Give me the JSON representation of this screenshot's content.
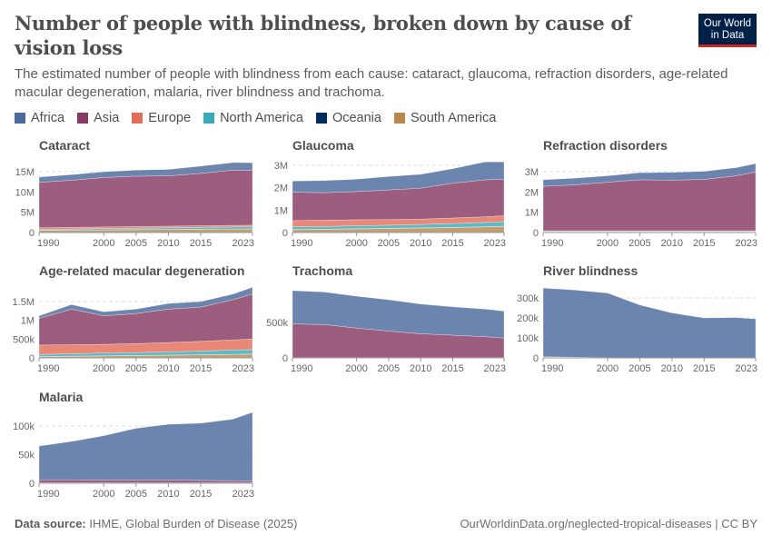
{
  "header": {
    "title": "Number of people with blindness, broken down by cause of vision loss",
    "subtitle": "The estimated number of people with blindness from each cause: cataract, glaucoma, refraction disorders, age-related macular degeneration, malaria, river blindness and trachoma.",
    "logo_text": "Our World in Data"
  },
  "legend": [
    {
      "name": "Africa",
      "color": "#4c6a9c"
    },
    {
      "name": "Asia",
      "color": "#883963"
    },
    {
      "name": "Europe",
      "color": "#e56e5a"
    },
    {
      "name": "North America",
      "color": "#38aaba"
    },
    {
      "name": "Oceania",
      "color": "#002b5c"
    },
    {
      "name": "South America",
      "color": "#b8894f"
    }
  ],
  "footer": {
    "source_label": "Data source:",
    "source": "IHME, Global Burden of Disease (2025)",
    "url": "OurWorldinData.org/neglected-tropical-diseases | CC BY"
  },
  "chart_data": [
    {
      "type": "area",
      "stacked": true,
      "title": "Cataract",
      "unit": "millions",
      "x": [
        1990,
        1995,
        2000,
        2005,
        2010,
        2015,
        2020,
        2023
      ],
      "xticks": [
        "1990",
        "2000",
        "2005",
        "2010",
        "2015",
        "2023"
      ],
      "yticks": [
        0,
        5,
        10,
        15
      ],
      "ytick_labels": [
        "0",
        "5M",
        "10M",
        "15M"
      ],
      "grid": "horizontal dashed",
      "series": [
        {
          "name": "Africa",
          "values": [
            1.3,
            1.4,
            1.4,
            1.5,
            1.6,
            1.8,
            1.9,
            1.9
          ]
        },
        {
          "name": "Asia",
          "values": [
            11.2,
            11.6,
            12.2,
            12.4,
            12.4,
            12.9,
            13.6,
            13.5
          ]
        },
        {
          "name": "Europe",
          "values": [
            0.4,
            0.4,
            0.4,
            0.4,
            0.4,
            0.4,
            0.4,
            0.4
          ]
        },
        {
          "name": "North America",
          "values": [
            0.2,
            0.25,
            0.3,
            0.35,
            0.4,
            0.45,
            0.5,
            0.5
          ]
        },
        {
          "name": "Oceania",
          "values": [
            0.02,
            0.02,
            0.02,
            0.02,
            0.02,
            0.02,
            0.02,
            0.02
          ]
        },
        {
          "name": "South America",
          "values": [
            0.55,
            0.6,
            0.65,
            0.7,
            0.75,
            0.8,
            0.85,
            0.9
          ]
        }
      ]
    },
    {
      "type": "area",
      "stacked": true,
      "title": "Glaucoma",
      "unit": "millions",
      "x": [
        1990,
        1995,
        2000,
        2005,
        2010,
        2015,
        2020,
        2023
      ],
      "xticks": [
        "1990",
        "2000",
        "2005",
        "2010",
        "2015",
        "2023"
      ],
      "yticks": [
        0,
        1,
        2,
        3
      ],
      "ytick_labels": [
        "0",
        "1M",
        "2M",
        "3M"
      ],
      "grid": "horizontal dashed",
      "series": [
        {
          "name": "Africa",
          "values": [
            0.5,
            0.54,
            0.55,
            0.6,
            0.62,
            0.65,
            0.8,
            0.77
          ]
        },
        {
          "name": "Asia",
          "values": [
            1.27,
            1.23,
            1.26,
            1.32,
            1.38,
            1.55,
            1.65,
            1.63
          ]
        },
        {
          "name": "Europe",
          "values": [
            0.28,
            0.28,
            0.27,
            0.25,
            0.24,
            0.25,
            0.25,
            0.27
          ]
        },
        {
          "name": "North America",
          "values": [
            0.12,
            0.12,
            0.13,
            0.14,
            0.15,
            0.17,
            0.19,
            0.2
          ]
        },
        {
          "name": "Oceania",
          "values": [
            0.01,
            0.01,
            0.01,
            0.01,
            0.01,
            0.01,
            0.01,
            0.01
          ]
        },
        {
          "name": "South America",
          "values": [
            0.12,
            0.14,
            0.16,
            0.18,
            0.2,
            0.22,
            0.25,
            0.27
          ]
        }
      ]
    },
    {
      "type": "area",
      "stacked": true,
      "title": "Refraction disorders",
      "unit": "millions",
      "x": [
        1990,
        1995,
        2000,
        2005,
        2010,
        2015,
        2020,
        2023
      ],
      "xticks": [
        "1990",
        "2000",
        "2005",
        "2010",
        "2015",
        "2023"
      ],
      "yticks": [
        0,
        1,
        2,
        3
      ],
      "ytick_labels": [
        "0",
        "1M",
        "2M",
        "3M"
      ],
      "grid": "horizontal dashed",
      "series": [
        {
          "name": "Africa",
          "values": [
            0.32,
            0.33,
            0.32,
            0.35,
            0.39,
            0.4,
            0.4,
            0.42
          ]
        },
        {
          "name": "Asia",
          "values": [
            2.195,
            2.265,
            2.395,
            2.515,
            2.495,
            2.535,
            2.715,
            2.895
          ]
        },
        {
          "name": "Europe",
          "values": [
            0.03,
            0.03,
            0.03,
            0.03,
            0.03,
            0.03,
            0.03,
            0.03
          ]
        },
        {
          "name": "North America",
          "values": [
            0.02,
            0.02,
            0.02,
            0.02,
            0.02,
            0.02,
            0.02,
            0.02
          ]
        },
        {
          "name": "Oceania",
          "values": [
            0.005,
            0.005,
            0.005,
            0.005,
            0.005,
            0.005,
            0.005,
            0.005
          ]
        },
        {
          "name": "South America",
          "values": [
            0.03,
            0.03,
            0.03,
            0.03,
            0.03,
            0.03,
            0.03,
            0.03
          ]
        }
      ]
    },
    {
      "type": "area",
      "stacked": true,
      "title": "Age-related macular degeneration",
      "unit": "millions",
      "x": [
        1990,
        1995,
        2000,
        2005,
        2010,
        2015,
        2020,
        2023
      ],
      "xticks": [
        "1990",
        "2000",
        "2005",
        "2010",
        "2015",
        "2023"
      ],
      "yticks": [
        0,
        0.5,
        1,
        1.5
      ],
      "ytick_labels": [
        "0",
        "500k",
        "1M",
        "1.5M"
      ],
      "grid": "horizontal dashed",
      "series": [
        {
          "name": "Africa",
          "values": [
            0.07,
            0.12,
            0.11,
            0.12,
            0.15,
            0.15,
            0.15,
            0.18
          ]
        },
        {
          "name": "Asia",
          "values": [
            0.71,
            0.95,
            0.76,
            0.8,
            0.89,
            0.91,
            1.07,
            1.2
          ]
        },
        {
          "name": "Europe",
          "values": [
            0.25,
            0.24,
            0.23,
            0.24,
            0.25,
            0.26,
            0.27,
            0.28
          ]
        },
        {
          "name": "North America",
          "values": [
            0.055,
            0.065,
            0.075,
            0.075,
            0.085,
            0.095,
            0.115,
            0.115
          ]
        },
        {
          "name": "Oceania",
          "values": [
            0.005,
            0.005,
            0.005,
            0.005,
            0.005,
            0.005,
            0.005,
            0.005
          ]
        },
        {
          "name": "South America",
          "values": [
            0.03,
            0.04,
            0.05,
            0.06,
            0.07,
            0.08,
            0.09,
            0.1
          ]
        }
      ]
    },
    {
      "type": "area",
      "stacked": true,
      "title": "Trachoma",
      "unit": "thousands",
      "x": [
        1990,
        1995,
        2000,
        2005,
        2010,
        2015,
        2020,
        2023
      ],
      "xticks": [
        "1990",
        "2000",
        "2005",
        "2010",
        "2015",
        "2023"
      ],
      "yticks": [
        0,
        500
      ],
      "ytick_labels": [
        "0",
        "500k"
      ],
      "grid": "horizontal dashed",
      "series": [
        {
          "name": "Africa",
          "values": [
            470,
            460,
            450,
            440,
            420,
            400,
            390,
            380
          ]
        },
        {
          "name": "Asia",
          "values": [
            475,
            465,
            415,
            375,
            335,
            315,
            295,
            275
          ]
        },
        {
          "name": "Europe",
          "values": [
            0,
            0,
            0,
            0,
            0,
            0,
            0,
            0
          ]
        },
        {
          "name": "North America",
          "values": [
            0,
            0,
            0,
            0,
            0,
            0,
            0,
            0
          ]
        },
        {
          "name": "Oceania",
          "values": [
            2,
            2,
            2,
            2,
            2,
            2,
            2,
            2
          ]
        },
        {
          "name": "South America",
          "values": [
            3,
            3,
            3,
            3,
            3,
            3,
            3,
            3
          ]
        }
      ]
    },
    {
      "type": "area",
      "stacked": true,
      "title": "River blindness",
      "unit": "thousands",
      "x": [
        1990,
        1995,
        2000,
        2005,
        2010,
        2015,
        2020,
        2023
      ],
      "xticks": [
        "1990",
        "2000",
        "2005",
        "2010",
        "2015",
        "2023"
      ],
      "yticks": [
        0,
        100,
        200,
        300
      ],
      "ytick_labels": [
        "0",
        "100k",
        "200k",
        "300k"
      ],
      "grid": "horizontal dashed",
      "series": [
        {
          "name": "Africa",
          "values": [
            344,
            336,
            323,
            264,
            224,
            199,
            201,
            194
          ]
        },
        {
          "name": "Asia",
          "values": [
            0.5,
            0.5,
            0.5,
            0.5,
            0.5,
            0.5,
            0.5,
            0.5
          ]
        },
        {
          "name": "Europe",
          "values": [
            0,
            0,
            0,
            0,
            0,
            0,
            0,
            0
          ]
        },
        {
          "name": "North America",
          "values": [
            0,
            0,
            0,
            0,
            0,
            0,
            0,
            0
          ]
        },
        {
          "name": "Oceania",
          "values": [
            0,
            0,
            0,
            0,
            0,
            0,
            0,
            0
          ]
        },
        {
          "name": "South America",
          "values": [
            5,
            3,
            1,
            0.5,
            0.5,
            0.5,
            0.5,
            0.5
          ]
        }
      ]
    },
    {
      "type": "area",
      "stacked": true,
      "title": "Malaria",
      "unit": "thousands",
      "x": [
        1990,
        1995,
        2000,
        2005,
        2010,
        2015,
        2020,
        2023
      ],
      "xticks": [
        "1990",
        "2000",
        "2005",
        "2010",
        "2015",
        "2023"
      ],
      "yticks": [
        0,
        50,
        100
      ],
      "ytick_labels": [
        "0",
        "50k",
        "100k"
      ],
      "grid": "horizontal dashed",
      "series": [
        {
          "name": "Africa",
          "values": [
            59,
            67,
            77.5,
            90.5,
            97.5,
            100,
            107.5,
            120
          ]
        },
        {
          "name": "Asia",
          "values": [
            5,
            5,
            4.5,
            4.5,
            4.5,
            4,
            3.5,
            3
          ]
        },
        {
          "name": "Europe",
          "values": [
            0,
            0,
            0,
            0,
            0,
            0,
            0,
            0
          ]
        },
        {
          "name": "North America",
          "values": [
            0,
            0,
            0,
            0,
            0,
            0,
            0,
            0
          ]
        },
        {
          "name": "Oceania",
          "values": [
            0,
            0,
            0,
            0,
            0,
            0,
            0,
            0
          ]
        },
        {
          "name": "South America",
          "values": [
            1,
            1,
            1,
            1,
            1,
            1,
            1,
            1
          ]
        }
      ]
    }
  ]
}
